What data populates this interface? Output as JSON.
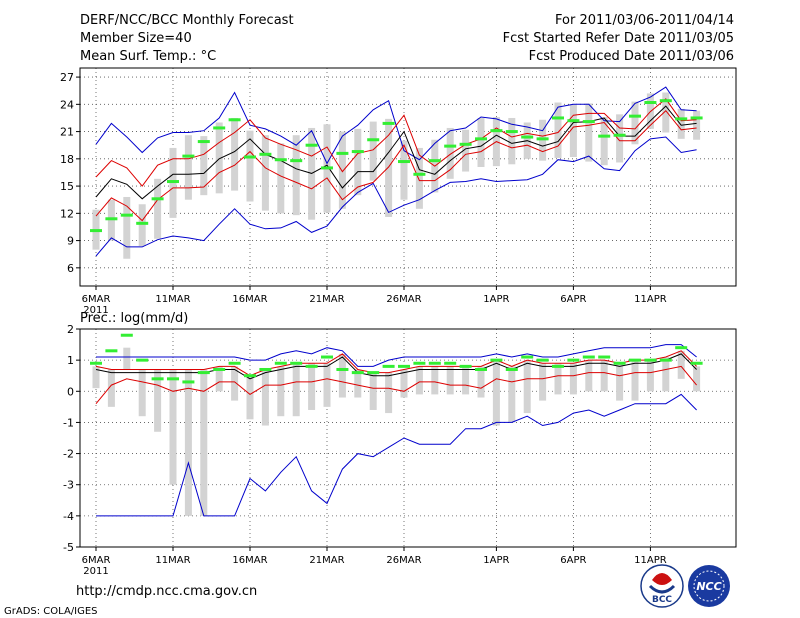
{
  "header": {
    "title_left": "DERF/NCC/BCC Monthly Forecast",
    "member_size": "Member Size=40",
    "variable": "Mean Surf. Temp.: °C",
    "title_right": "For 2011/03/06-2011/04/14",
    "started": "Fcst Started Refer Date 2011/03/05",
    "produced": "Fcst Produced Date 2011/03/06"
  },
  "footer": {
    "url": "http://cmdp.ncc.cma.gov.cn",
    "grads_credit": "GrADS: COLA/IGES",
    "logo_bcc": "BCC",
    "logo_ncc": "NCC"
  },
  "colors": {
    "band": "#d3d3d3",
    "mean": "#000000",
    "inner": "#dd0000",
    "outer": "#0000cc",
    "obs": "#33ee33"
  },
  "chart_data": [
    {
      "type": "line",
      "title": "Mean Surf. Temp.: °C",
      "x_tick_labels": [
        "6MAR",
        "11MAR",
        "16MAR",
        "21MAR",
        "26MAR",
        "1APR",
        "6APR",
        "11APR"
      ],
      "x_tick_days": [
        1,
        6,
        11,
        16,
        21,
        27,
        32,
        37
      ],
      "year_label": "2011",
      "ylim": [
        4,
        28
      ],
      "yticks": [
        6,
        9,
        12,
        15,
        18,
        21,
        24,
        27
      ],
      "days": [
        1,
        2,
        3,
        4,
        5,
        6,
        7,
        8,
        9,
        10,
        11,
        12,
        13,
        14,
        15,
        16,
        17,
        18,
        19,
        20,
        21,
        22,
        23,
        24,
        25,
        26,
        27,
        28,
        29,
        30,
        31,
        32,
        33,
        34,
        35,
        36,
        37,
        38,
        39,
        40
      ],
      "series": [
        {
          "name": "mean",
          "values": [
            13.8,
            15.8,
            15.2,
            13.6,
            15.0,
            16.3,
            16.3,
            16.4,
            18.0,
            18.8,
            20.2,
            18.5,
            17.8,
            16.9,
            16.4,
            17.3,
            14.8,
            16.6,
            16.6,
            18.7,
            21.0,
            16.8,
            16.3,
            17.8,
            19.1,
            19.4,
            20.6,
            19.7,
            20.0,
            19.4,
            19.9,
            22.0,
            22.1,
            22.5,
            20.5,
            20.5,
            22.2,
            23.8,
            21.7,
            21.9
          ]
        },
        {
          "name": "upper_inner",
          "values": [
            16.0,
            17.8,
            17.0,
            15.0,
            17.3,
            18.0,
            18.0,
            18.5,
            19.8,
            20.9,
            22.3,
            20.3,
            19.6,
            19.0,
            18.3,
            19.3,
            16.6,
            18.6,
            19.0,
            20.6,
            22.8,
            18.4,
            17.2,
            18.5,
            19.6,
            20.2,
            21.4,
            20.4,
            20.8,
            20.5,
            20.9,
            22.8,
            23.0,
            23.0,
            21.4,
            21.3,
            23.2,
            24.6,
            22.2,
            22.3
          ]
        },
        {
          "name": "lower_inner",
          "values": [
            11.7,
            13.7,
            12.8,
            11.2,
            13.5,
            14.8,
            14.8,
            14.9,
            16.5,
            17.3,
            18.8,
            17.0,
            16.1,
            15.4,
            14.7,
            15.9,
            13.5,
            14.9,
            15.4,
            17.1,
            19.5,
            15.6,
            15.6,
            16.8,
            18.5,
            18.8,
            19.9,
            19.2,
            19.5,
            18.8,
            19.4,
            21.5,
            21.7,
            22.0,
            20.0,
            20.0,
            21.7,
            23.3,
            21.2,
            21.4
          ]
        },
        {
          "name": "upper_outer",
          "values": [
            19.6,
            21.9,
            20.4,
            18.7,
            20.3,
            20.9,
            20.9,
            21.1,
            22.5,
            25.3,
            21.7,
            21.3,
            20.5,
            19.5,
            21.1,
            17.5,
            20.5,
            21.7,
            23.4,
            24.4,
            18.9,
            17.9,
            19.7,
            21.1,
            21.4,
            22.6,
            22.4,
            21.8,
            21.5,
            21.1,
            23.7,
            24.0,
            24.0,
            22.2,
            22.1,
            24.1,
            24.8,
            25.9,
            23.4,
            23.3
          ]
        },
        {
          "name": "lower_outer",
          "values": [
            7.3,
            9.3,
            8.3,
            8.3,
            9.1,
            9.5,
            9.3,
            9.0,
            10.8,
            12.5,
            10.8,
            10.3,
            10.4,
            11.1,
            9.9,
            10.6,
            12.7,
            14.3,
            15.3,
            12.1,
            12.9,
            13.5,
            14.5,
            15.4,
            15.5,
            15.8,
            15.5,
            15.6,
            15.7,
            16.3,
            17.9,
            17.7,
            18.3,
            16.9,
            16.7,
            18.9,
            20.2,
            20.4,
            18.7,
            19.0
          ]
        },
        {
          "name": "observed",
          "values": [
            10.1,
            11.4,
            11.8,
            10.9,
            13.6,
            15.5,
            18.3,
            19.9,
            21.4,
            22.3,
            18.2,
            18.5,
            17.9,
            17.8,
            19.5,
            17.0,
            18.6,
            18.8,
            20.1,
            21.9,
            17.7,
            16.3,
            17.8,
            19.4,
            19.6,
            20.2,
            21.1,
            21.0,
            20.4,
            20.2,
            22.5,
            22.2,
            22.1,
            20.5,
            20.6,
            22.7,
            24.2,
            24.4,
            22.4,
            22.5
          ]
        }
      ],
      "bars": {
        "name": "observed_spread",
        "low": [
          8.0,
          9.0,
          7.0,
          8.4,
          9.2,
          11.5,
          13.5,
          14.0,
          14.2,
          14.5,
          13.3,
          12.3,
          12.0,
          11.8,
          11.3,
          12.1,
          12.5,
          14.0,
          15.6,
          11.6,
          13.5,
          12.5,
          14.3,
          15.8,
          16.6,
          17.1,
          17.2,
          17.4,
          18.0,
          17.8,
          18.1,
          18.2,
          17.7,
          17.3,
          17.6,
          19.6,
          21.3,
          20.9,
          20.2,
          20.1
        ],
        "high": [
          12.4,
          13.5,
          13.8,
          13.0,
          15.8,
          19.2,
          20.6,
          20.5,
          22.0,
          22.5,
          21.1,
          20.6,
          19.7,
          20.6,
          21.4,
          21.8,
          21.0,
          21.3,
          22.1,
          22.4,
          20.0,
          19.2,
          20.1,
          21.4,
          21.2,
          22.5,
          22.6,
          22.5,
          22.0,
          22.3,
          24.2,
          24.0,
          24.1,
          22.6,
          22.9,
          24.3,
          25.2,
          25.3,
          23.5,
          23.3
        ]
      }
    },
    {
      "type": "line",
      "title": "Prec.: log(mm/d)",
      "x_tick_labels": [
        "6MAR",
        "11MAR",
        "16MAR",
        "21MAR",
        "26MAR",
        "1APR",
        "6APR",
        "11APR"
      ],
      "x_tick_days": [
        1,
        6,
        11,
        16,
        21,
        27,
        32,
        37
      ],
      "year_label": "2011",
      "ylim": [
        -5,
        2
      ],
      "yticks": [
        -5,
        -4,
        -3,
        -2,
        -1,
        0,
        1,
        2
      ],
      "days": [
        1,
        2,
        3,
        4,
        5,
        6,
        7,
        8,
        9,
        10,
        11,
        12,
        13,
        14,
        15,
        16,
        17,
        18,
        19,
        20,
        21,
        22,
        23,
        24,
        25,
        26,
        27,
        28,
        29,
        30,
        31,
        32,
        33,
        34,
        35,
        36,
        37,
        38,
        39,
        40
      ],
      "series": [
        {
          "name": "mean",
          "values": [
            0.7,
            0.6,
            0.6,
            0.6,
            0.6,
            0.6,
            0.6,
            0.6,
            0.7,
            0.7,
            0.4,
            0.6,
            0.7,
            0.8,
            0.8,
            0.8,
            1.1,
            0.6,
            0.5,
            0.5,
            0.6,
            0.7,
            0.7,
            0.7,
            0.7,
            0.7,
            0.9,
            0.7,
            0.9,
            0.8,
            0.8,
            0.8,
            0.9,
            0.9,
            0.8,
            0.9,
            0.9,
            1.0,
            1.2,
            0.7
          ]
        },
        {
          "name": "upper_inner",
          "values": [
            0.8,
            0.7,
            0.7,
            0.7,
            0.7,
            0.7,
            0.7,
            0.7,
            0.8,
            0.8,
            0.5,
            0.7,
            0.8,
            0.9,
            0.9,
            0.9,
            1.2,
            0.7,
            0.6,
            0.6,
            0.7,
            0.8,
            0.8,
            0.8,
            0.8,
            0.8,
            1.0,
            0.8,
            1.0,
            0.9,
            0.9,
            0.9,
            1.0,
            1.0,
            0.9,
            1.0,
            1.0,
            1.1,
            1.3,
            0.8
          ]
        },
        {
          "name": "lower_inner",
          "values": [
            -0.4,
            0.2,
            0.4,
            0.3,
            0.2,
            0.0,
            0.1,
            0.0,
            0.3,
            0.3,
            -0.1,
            0.2,
            0.2,
            0.3,
            0.3,
            0.4,
            0.3,
            0.2,
            0.1,
            0.1,
            0.0,
            0.3,
            0.3,
            0.2,
            0.2,
            0.1,
            0.4,
            0.3,
            0.4,
            0.4,
            0.5,
            0.5,
            0.6,
            0.6,
            0.5,
            0.6,
            0.6,
            0.7,
            0.8,
            0.2
          ]
        },
        {
          "name": "upper_outer",
          "values": [
            1.1,
            1.1,
            1.1,
            1.1,
            1.1,
            1.1,
            1.1,
            1.1,
            1.1,
            1.1,
            1.0,
            1.0,
            1.2,
            1.3,
            1.2,
            1.4,
            1.3,
            0.8,
            0.8,
            1.0,
            1.1,
            1.1,
            1.1,
            1.1,
            1.1,
            1.1,
            1.2,
            1.1,
            1.2,
            1.1,
            1.1,
            1.2,
            1.3,
            1.4,
            1.4,
            1.4,
            1.4,
            1.5,
            1.5,
            1.1
          ]
        },
        {
          "name": "lower_outer",
          "values": [
            -4.0,
            -4.0,
            -4.0,
            -4.0,
            -4.0,
            -4.0,
            -2.3,
            -4.0,
            -4.0,
            -4.0,
            -2.8,
            -3.2,
            -2.6,
            -2.1,
            -3.2,
            -3.6,
            -2.5,
            -2.0,
            -2.1,
            -1.8,
            -1.5,
            -1.7,
            -1.7,
            -1.7,
            -1.2,
            -1.2,
            -1.0,
            -1.0,
            -0.8,
            -1.1,
            -1.0,
            -0.7,
            -0.6,
            -0.8,
            -0.6,
            -0.4,
            -0.4,
            -0.4,
            -0.1,
            -0.6
          ]
        },
        {
          "name": "observed",
          "values": [
            0.9,
            1.3,
            1.8,
            1.0,
            0.4,
            0.4,
            0.3,
            0.6,
            0.7,
            0.9,
            0.5,
            0.7,
            0.9,
            0.9,
            0.8,
            1.1,
            0.7,
            0.6,
            0.6,
            0.8,
            0.8,
            0.9,
            0.9,
            0.9,
            0.8,
            0.7,
            1.0,
            0.7,
            1.1,
            1.0,
            0.8,
            1.0,
            1.1,
            1.1,
            0.9,
            1.0,
            1.0,
            1.0,
            1.4,
            0.9
          ]
        }
      ],
      "bars": {
        "name": "observed_spread",
        "low": [
          0.1,
          -0.5,
          1.4,
          -0.8,
          -1.3,
          -3.0,
          -4.0,
          -4.0,
          0.0,
          -0.3,
          -0.9,
          -1.1,
          -0.8,
          -0.8,
          -0.6,
          -0.5,
          -0.2,
          -0.2,
          -0.6,
          -0.7,
          -0.2,
          -0.1,
          -0.1,
          -0.1,
          -0.1,
          -0.2,
          -1.1,
          -1.0,
          -0.7,
          -0.3,
          -0.1,
          -0.1,
          0.0,
          0.0,
          -0.3,
          -0.3,
          0.0,
          0.0,
          0.4,
          0.0
        ]
      }
    }
  ]
}
